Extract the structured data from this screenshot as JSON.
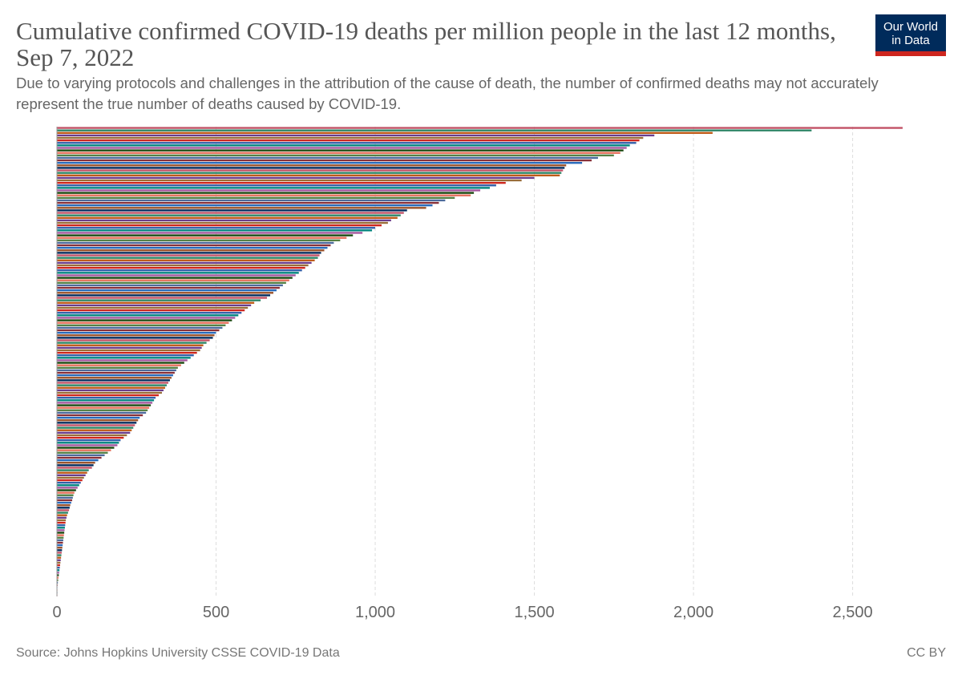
{
  "header": {
    "title": "Cumulative confirmed COVID-19 deaths per million people in the last 12 months, Sep 7, 2022",
    "subtitle": "Due to varying protocols and challenges in the attribution of the cause of death, the number of confirmed deaths may not accurately represent the true number of deaths caused by COVID-19.",
    "logo_line1": "Our World",
    "logo_line2": "in Data"
  },
  "footer": {
    "source": "Source: Johns Hopkins University CSSE COVID-19 Data",
    "license": "CC BY"
  },
  "colors": {
    "palette": [
      "#c15065",
      "#2c8465",
      "#be5915",
      "#6b3d8d",
      "#996d39",
      "#ce261e",
      "#3360a9",
      "#00847e",
      "#a2559c",
      "#18470f",
      "#e56e5a",
      "#578145",
      "#4c6a9c",
      "#883039",
      "#286bbb",
      "#9a5129",
      "#00295b"
    ],
    "grid": "#dddddd",
    "logo_background": "#002b5b",
    "logo_accent": "#ce261e"
  },
  "chart_data": {
    "type": "bar",
    "orientation": "horizontal",
    "x_ticks": [
      0,
      500,
      1000,
      1500,
      2000,
      2500
    ],
    "x_tick_labels": [
      "0",
      "500",
      "1,000",
      "1,500",
      "2,000",
      "2,500"
    ],
    "xlim": [
      0,
      2700
    ],
    "grid": "vertical dashed",
    "title": "Cumulative confirmed COVID-19 deaths per million people in the last 12 months, Sep 7, 2022",
    "values": [
      2657,
      2371,
      2060,
      1877,
      1842,
      1830,
      1820,
      1800,
      1790,
      1780,
      1770,
      1750,
      1700,
      1680,
      1650,
      1600,
      1595,
      1590,
      1585,
      1580,
      1500,
      1460,
      1410,
      1380,
      1360,
      1330,
      1310,
      1300,
      1250,
      1220,
      1200,
      1180,
      1160,
      1100,
      1090,
      1080,
      1070,
      1050,
      1040,
      1020,
      1000,
      990,
      960,
      930,
      910,
      890,
      870,
      860,
      850,
      840,
      830,
      825,
      820,
      810,
      800,
      790,
      780,
      770,
      760,
      750,
      740,
      730,
      720,
      710,
      700,
      690,
      680,
      670,
      660,
      640,
      620,
      610,
      600,
      590,
      580,
      570,
      560,
      550,
      540,
      530,
      520,
      510,
      500,
      495,
      490,
      480,
      470,
      460,
      455,
      450,
      440,
      430,
      420,
      410,
      400,
      390,
      380,
      375,
      370,
      365,
      360,
      355,
      350,
      345,
      340,
      335,
      330,
      320,
      310,
      305,
      300,
      295,
      290,
      285,
      280,
      270,
      260,
      255,
      250,
      245,
      240,
      235,
      230,
      220,
      210,
      200,
      195,
      190,
      180,
      170,
      160,
      150,
      140,
      130,
      120,
      115,
      110,
      100,
      95,
      90,
      85,
      80,
      75,
      70,
      65,
      60,
      55,
      52,
      50,
      48,
      45,
      42,
      40,
      38,
      35,
      32,
      30,
      28,
      27,
      26,
      25,
      24,
      23,
      22,
      21,
      20,
      19,
      18,
      17,
      16,
      15,
      14,
      13,
      12,
      11,
      10,
      9,
      8,
      7,
      6,
      5,
      4,
      3,
      2,
      1.5,
      1,
      0.5,
      0.2
    ]
  }
}
